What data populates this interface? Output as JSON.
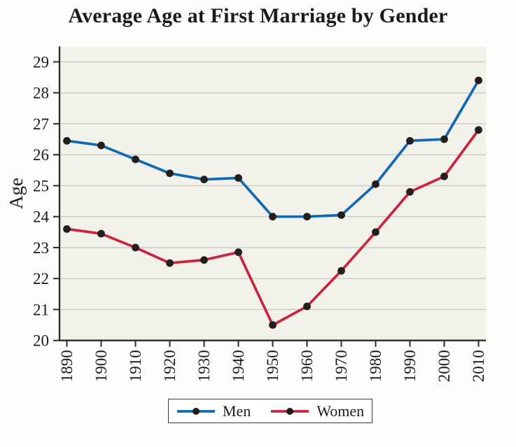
{
  "chart_data": {
    "type": "line",
    "title": "Average Age at First Marriage by Gender",
    "xlabel": "",
    "ylabel": "Age",
    "x": [
      1890,
      1900,
      1910,
      1920,
      1930,
      1940,
      1950,
      1960,
      1970,
      1980,
      1990,
      2000,
      2010
    ],
    "y_ticks": [
      20,
      21,
      22,
      23,
      24,
      25,
      26,
      27,
      28,
      29
    ],
    "xlim": [
      1888,
      2012
    ],
    "ylim": [
      20,
      29.5
    ],
    "grid": "horizontal-only",
    "legend_position": "bottom-center",
    "series": [
      {
        "name": "Men",
        "color_key": "men_line",
        "values": [
          26.45,
          26.3,
          25.85,
          25.4,
          25.2,
          25.25,
          24.0,
          24.0,
          24.05,
          25.05,
          26.45,
          26.5,
          28.4
        ]
      },
      {
        "name": "Women",
        "color_key": "women_line",
        "values": [
          23.6,
          23.45,
          23.0,
          22.5,
          22.6,
          22.85,
          20.5,
          21.1,
          22.25,
          23.5,
          24.8,
          25.3,
          26.8
        ]
      }
    ]
  },
  "colors": {
    "men_line": "#1168b3",
    "women_line": "#c9243e",
    "marker": "#221f1e",
    "plot_background": "#f2f1ea",
    "gridline": "#c9cac4",
    "axis": "#2a2a2a",
    "text": "#1b1b1b",
    "page_background": "#fdfdfb",
    "legend_background": "#ffffff",
    "legend_border": "#3a3a3a"
  }
}
